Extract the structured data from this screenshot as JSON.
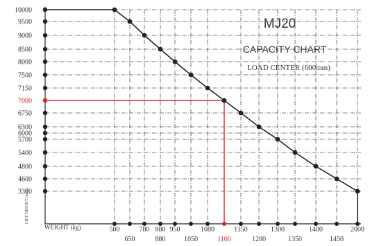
{
  "chart_data": {
    "type": "line",
    "title": "MJ20",
    "subtitle": "CAPACITY CHART",
    "note": "LOAD CENTER (600mm)",
    "xlabel": "WEIGHT (kg)",
    "ylabel": "LIFT HEIGHT (mm)",
    "y_tick_labels": [
      "10000",
      "9500",
      "9000",
      "8500",
      "8000",
      "7500",
      "7150",
      "7000",
      "6750",
      "6300",
      "6000",
      "5700",
      "5400",
      "4800",
      "4600",
      "3300"
    ],
    "x_tick_labels_top": [
      "500",
      "780",
      "880",
      "950",
      "1080",
      "1150",
      "1300",
      "1400",
      "2000"
    ],
    "x_tick_labels_bottom": [
      "650",
      "880",
      "1050",
      "1100",
      "1200",
      "1350",
      "1450"
    ],
    "series": [
      {
        "x": [
          500,
          650,
          780,
          880,
          950,
          1050,
          1080,
          1100,
          1150,
          1200,
          1300,
          1350,
          1400,
          1450,
          2000
        ],
        "y": [
          10000,
          9500,
          9000,
          8500,
          8000,
          7500,
          7150,
          7000,
          6750,
          6300,
          5700,
          5400,
          4800,
          4600,
          3300
        ]
      }
    ],
    "highlight": {
      "x": 1100,
      "y": 7000
    },
    "grid": true,
    "colors": {
      "line": "#222222",
      "grid": "#555555",
      "highlight": "#d8232a"
    }
  }
}
